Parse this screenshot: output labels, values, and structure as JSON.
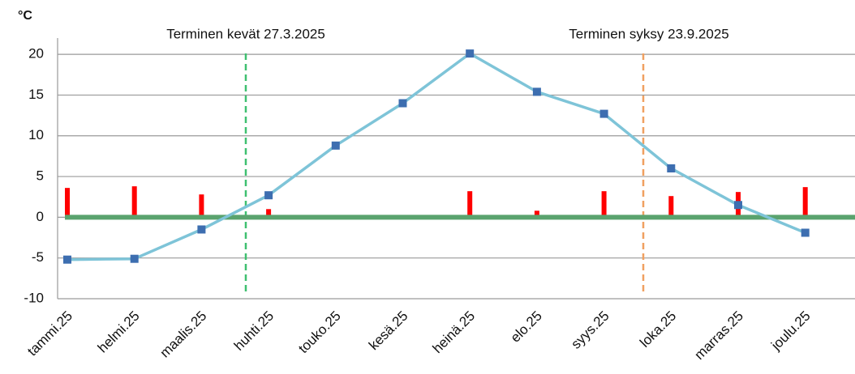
{
  "chart_data": {
    "type": "line",
    "y_label": "°C",
    "categories": [
      "tammi.25",
      "helmi.25",
      "maalis.25",
      "huhti.25",
      "touko.25",
      "kesä.25",
      "heinä.25",
      "elo.25",
      "syys.25",
      "loka.25",
      "marras.25",
      "joulu.25"
    ],
    "series": [
      {
        "type": "bar",
        "color": "#ff0000",
        "values": [
          3.6,
          3.8,
          2.8,
          1.0,
          0,
          0,
          3.2,
          0.8,
          3.2,
          2.6,
          3.1,
          3.7
        ]
      },
      {
        "type": "line",
        "color": "#7ec4d8",
        "marker_color": "#3d6eb0",
        "values": [
          -5.2,
          -5.1,
          -1.5,
          2.7,
          8.8,
          14.0,
          20.1,
          15.4,
          12.7,
          6.0,
          1.5,
          -1.9
        ]
      }
    ],
    "zero_line_color": "#5aa36e",
    "annotations": [
      {
        "text": "Terminen kevät 27.3.2025",
        "color": "#3fc070"
      },
      {
        "text": "Terminen syksy 23.9.2025",
        "color": "#f0a060"
      }
    ],
    "ylim": [
      -10,
      22
    ],
    "yticks": [
      -10,
      -5,
      0,
      5,
      10,
      15,
      20
    ],
    "grid": true
  }
}
